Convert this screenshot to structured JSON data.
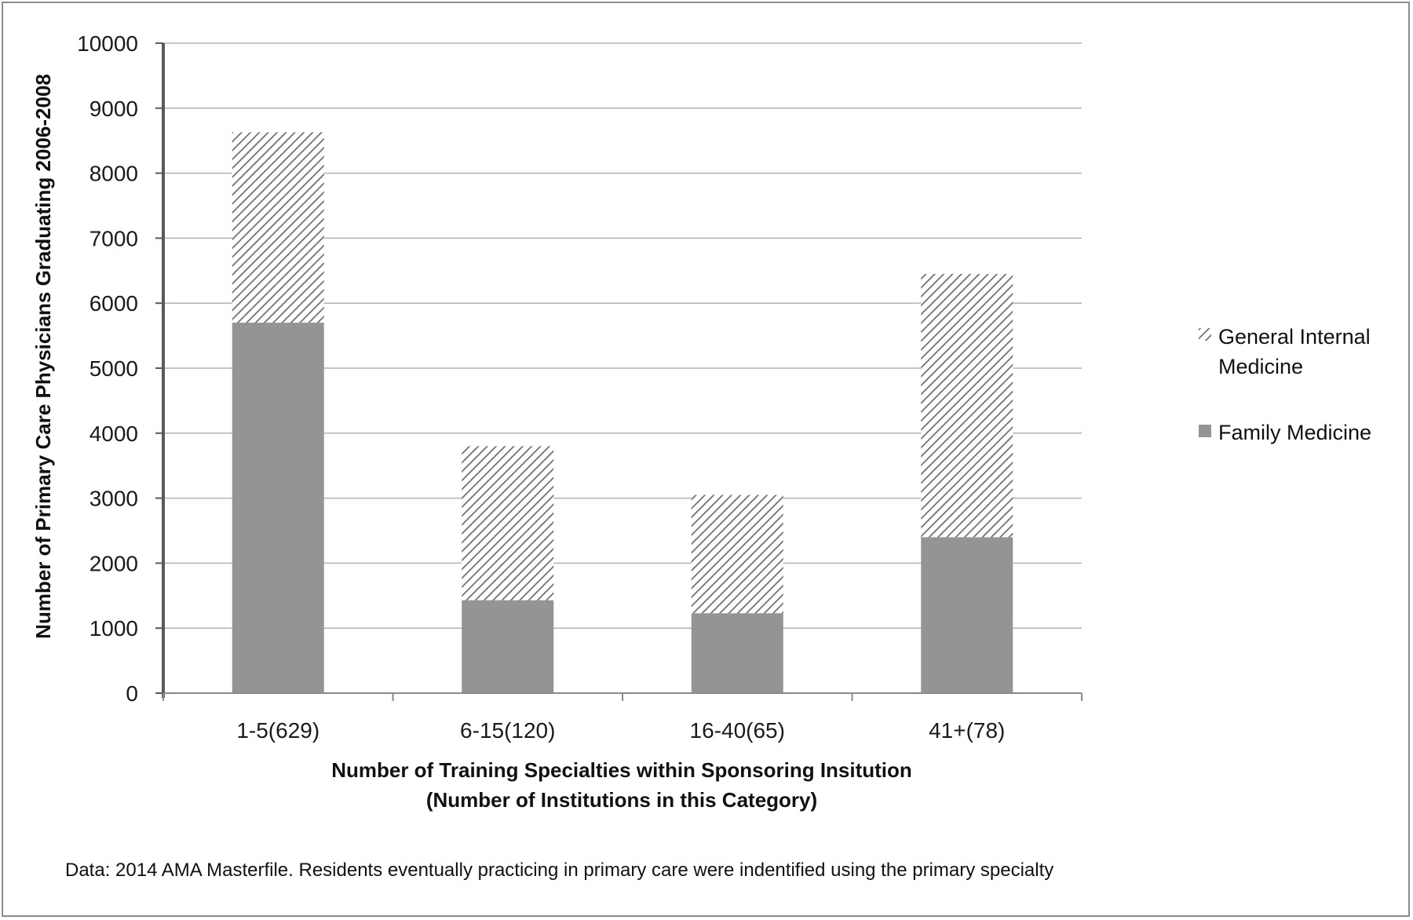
{
  "chart_data": {
    "type": "bar",
    "stacked": true,
    "categories": [
      "1-5(629)",
      "6-15(120)",
      "16-40(65)",
      "41+(78)"
    ],
    "series": [
      {
        "name": "Family Medicine",
        "values": [
          5700,
          1430,
          1230,
          2400
        ],
        "color": "#949494",
        "pattern": "solid"
      },
      {
        "name": "General Internal Medicine",
        "values": [
          2930,
          2370,
          1820,
          4050
        ],
        "color": "#7a7a7a",
        "pattern": "diagonal-hatch"
      }
    ],
    "ylim": [
      0,
      10000
    ],
    "yticks": [
      "0",
      "1000",
      "2000",
      "3000",
      "4000",
      "5000",
      "6000",
      "7000",
      "8000",
      "9000",
      "10000"
    ],
    "ylabel": "Number of Primary Care Physicians Graduating 2006-2008",
    "xlabel_line1": "Number of Training Specialties within Sponsoring Insitution",
    "xlabel_line2": "(Number of Institutions in this Category)",
    "legend": {
      "position": "right",
      "entries": [
        "General Internal",
        "Medicine",
        "Family Medicine"
      ]
    },
    "grid": true,
    "note": "Data: 2014 AMA Masterfile.  Residents eventually practicing in primary care were indentified using the primary specialty"
  }
}
